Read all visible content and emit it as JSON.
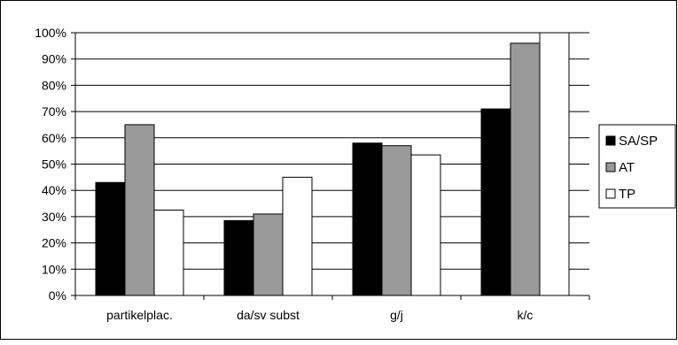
{
  "chart_data": {
    "type": "bar",
    "title": "",
    "xlabel": "",
    "ylabel": "",
    "categories": [
      "partikelplac.",
      "da/sv subst",
      "g/j",
      "k/c"
    ],
    "series": [
      {
        "name": "SA/SP",
        "color": "#000000",
        "values": [
          43,
          28.5,
          58,
          71
        ]
      },
      {
        "name": "AT",
        "color": "#999999",
        "values": [
          65,
          31,
          57,
          96
        ]
      },
      {
        "name": "TP",
        "color": "#ffffff",
        "values": [
          32.5,
          45,
          53.5,
          100
        ]
      }
    ],
    "ylim": [
      0,
      100
    ],
    "y_tick_labels": [
      "0%",
      "10%",
      "20%",
      "30%",
      "40%",
      "50%",
      "60%",
      "70%",
      "80%",
      "90%",
      "100%"
    ],
    "grid": true,
    "legend_position": "right"
  }
}
